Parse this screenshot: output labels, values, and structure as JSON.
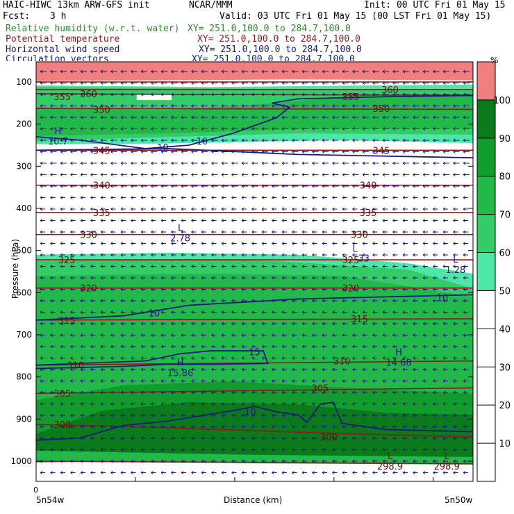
{
  "header": {
    "title": "HAIC-HIWC 13km ARW-GFS init",
    "org": "NCAR/MMM",
    "init": "Init: 00 UTC Fri 01 May 15",
    "fcst_label": "Fcst:",
    "fcst_value": "3 h",
    "valid": "Valid: 03 UTC Fri 01 May 15 (00 LST Fri 01 May 15)"
  },
  "legend": [
    {
      "name": "Relative humidity (w.r.t. water)",
      "xy": "XY= 251.0,100.0 to 284.7,100.0",
      "color": "#2e8b2e"
    },
    {
      "name": "Potential temperature",
      "xy": "XY= 251.0,100.0 to 284.7,100.0",
      "color": "#8b1a1a"
    },
    {
      "name": "Horizontal wind speed",
      "xy": "XY= 251.0,100.0 to 284.7,100.0",
      "color": "#1a1a80"
    },
    {
      "name": "Circulation vectors",
      "xy": "XY= 251.0,100.0 to 284.7,100.0",
      "color": "#1a1a80"
    }
  ],
  "chart_data": {
    "type": "heatmap",
    "ylabel": "Pressure (hPa)",
    "xlabel": "Distance (km)",
    "x_start_label": "0",
    "x_left_label": "5n54w",
    "x_right_label": "5n50w",
    "y_ticks": [
      100,
      200,
      300,
      400,
      500,
      600,
      700,
      800,
      900,
      1000
    ],
    "colorbar": {
      "unit": "%",
      "ticks": [
        10,
        20,
        30,
        40,
        50,
        60,
        70,
        80,
        90,
        100
      ],
      "bands": [
        {
          "from": 0,
          "to": 50,
          "color": "#ffffff"
        },
        {
          "from": 50,
          "to": 60,
          "color": "#4de6a6"
        },
        {
          "from": 60,
          "to": 70,
          "color": "#33cc66"
        },
        {
          "from": 70,
          "to": 80,
          "color": "#22b84a"
        },
        {
          "from": 80,
          "to": 90,
          "color": "#129c2e"
        },
        {
          "from": 90,
          "to": 100,
          "color": "#0a7a1a"
        },
        {
          "from": 100,
          "to": 110,
          "color": "#f08080"
        }
      ]
    },
    "theta_labels": [
      {
        "text": "360",
        "x": 0.12,
        "p": 128
      },
      {
        "text": "360",
        "x": 0.81,
        "p": 118
      },
      {
        "text": "355",
        "x": 0.06,
        "p": 135
      },
      {
        "text": "355",
        "x": 0.72,
        "p": 135
      },
      {
        "text": "350",
        "x": 0.15,
        "p": 165
      },
      {
        "text": "350",
        "x": 0.79,
        "p": 163
      },
      {
        "text": "345",
        "x": 0.15,
        "p": 262
      },
      {
        "text": "345",
        "x": 0.79,
        "p": 262
      },
      {
        "text": "340",
        "x": 0.15,
        "p": 345
      },
      {
        "text": "340",
        "x": 0.76,
        "p": 345
      },
      {
        "text": "335",
        "x": 0.15,
        "p": 410
      },
      {
        "text": "335",
        "x": 0.76,
        "p": 410
      },
      {
        "text": "330",
        "x": 0.12,
        "p": 462
      },
      {
        "text": "330",
        "x": 0.74,
        "p": 462
      },
      {
        "text": "325",
        "x": 0.07,
        "p": 522
      },
      {
        "text": "325",
        "x": 0.72,
        "p": 522
      },
      {
        "text": "320",
        "x": 0.12,
        "p": 589
      },
      {
        "text": "320",
        "x": 0.72,
        "p": 589
      },
      {
        "text": "315",
        "x": 0.07,
        "p": 665
      },
      {
        "text": "315",
        "x": 0.74,
        "p": 662
      },
      {
        "text": "310",
        "x": 0.09,
        "p": 772
      },
      {
        "text": "310",
        "x": 0.7,
        "p": 762
      },
      {
        "text": "305",
        "x": 0.06,
        "p": 839
      },
      {
        "text": "305",
        "x": 0.65,
        "p": 826
      },
      {
        "text": "300",
        "x": 0.06,
        "p": 913
      },
      {
        "text": "300",
        "x": 0.67,
        "p": 942
      }
    ],
    "wind_labels": [
      {
        "text": "10",
        "x": 0.29,
        "p": 255
      },
      {
        "text": "10",
        "x": 0.38,
        "p": 240
      },
      {
        "text": "10",
        "x": 0.27,
        "p": 648
      },
      {
        "text": "10",
        "x": 0.93,
        "p": 612
      },
      {
        "text": "15",
        "x": 0.5,
        "p": 740
      },
      {
        "text": "10",
        "x": 0.49,
        "p": 882
      }
    ],
    "extrema": [
      {
        "letter": "H",
        "value": "10.7",
        "x": 0.05,
        "p": 230
      },
      {
        "letter": "L",
        "value": "2.78",
        "x": 0.33,
        "p": 460
      },
      {
        "letter": "L",
        "value": "",
        "x": 0.73,
        "p": 510
      },
      {
        "letter": "L",
        "value": "1.28",
        "x": 0.96,
        "p": 535
      },
      {
        "letter": "H",
        "value": "15.86",
        "x": 0.33,
        "p": 780
      },
      {
        "letter": "H",
        "value": "14.68",
        "x": 0.83,
        "p": 755
      },
      {
        "letter": "L",
        "value": "298.9",
        "x": 0.81,
        "p": 1002
      },
      {
        "letter": "L",
        "value": "298.9",
        "x": 0.94,
        "p": 1002
      }
    ],
    "extra_numbers": [
      {
        "text": "33",
        "x": 0.75,
        "p": 518
      }
    ]
  }
}
